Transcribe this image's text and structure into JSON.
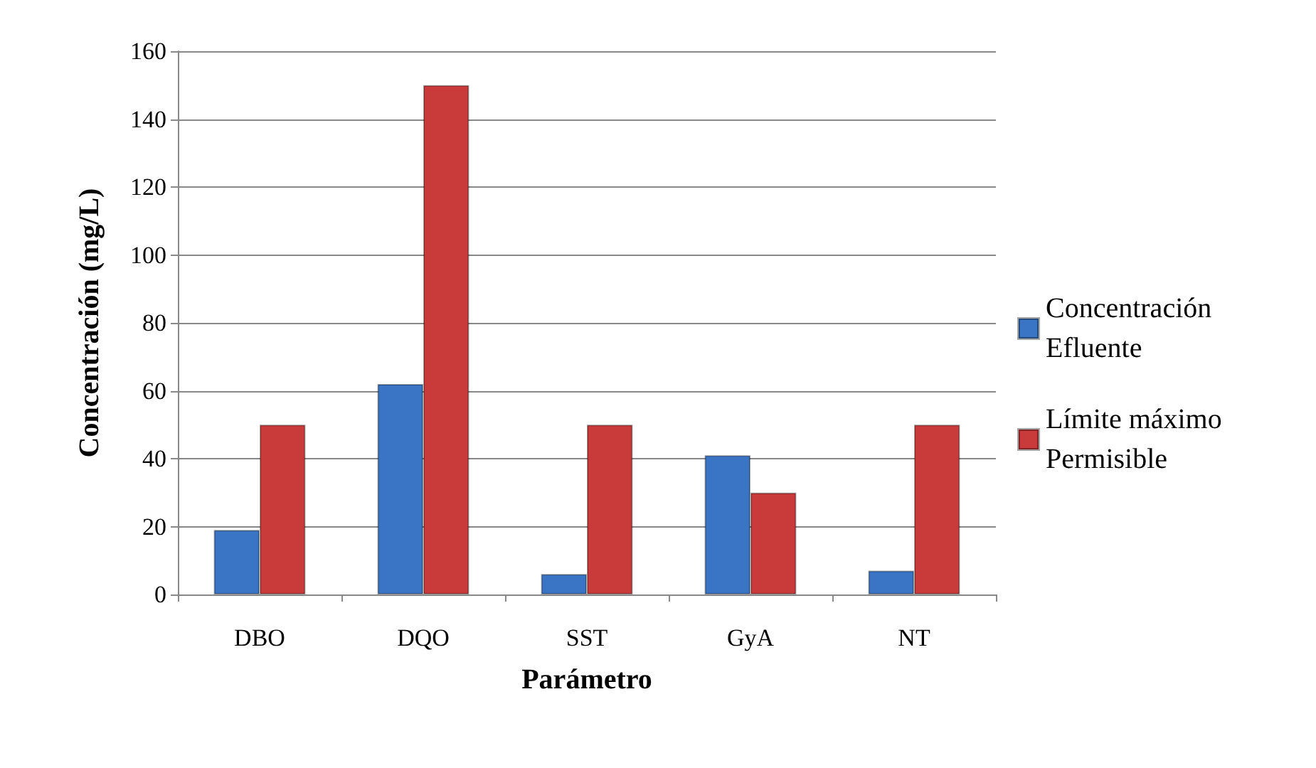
{
  "chart_data": {
    "type": "bar",
    "xlabel": "Parámetro",
    "ylabel": "Concentración (mg/L)",
    "categories": [
      "DBO",
      "DQO",
      "SST",
      "GyA",
      "NT"
    ],
    "series": [
      {
        "name": "Concentración Efluente",
        "color": "#3a74c4",
        "values": [
          19,
          62,
          6,
          41,
          7
        ]
      },
      {
        "name": "Límite máximo Permisible",
        "color": "#c93a3a",
        "values": [
          50,
          150,
          50,
          30,
          50
        ]
      }
    ],
    "ylim": [
      0,
      160
    ],
    "yticks": [
      0,
      20,
      40,
      60,
      80,
      100,
      120,
      140,
      160
    ],
    "grid": "y",
    "legend": "right"
  }
}
